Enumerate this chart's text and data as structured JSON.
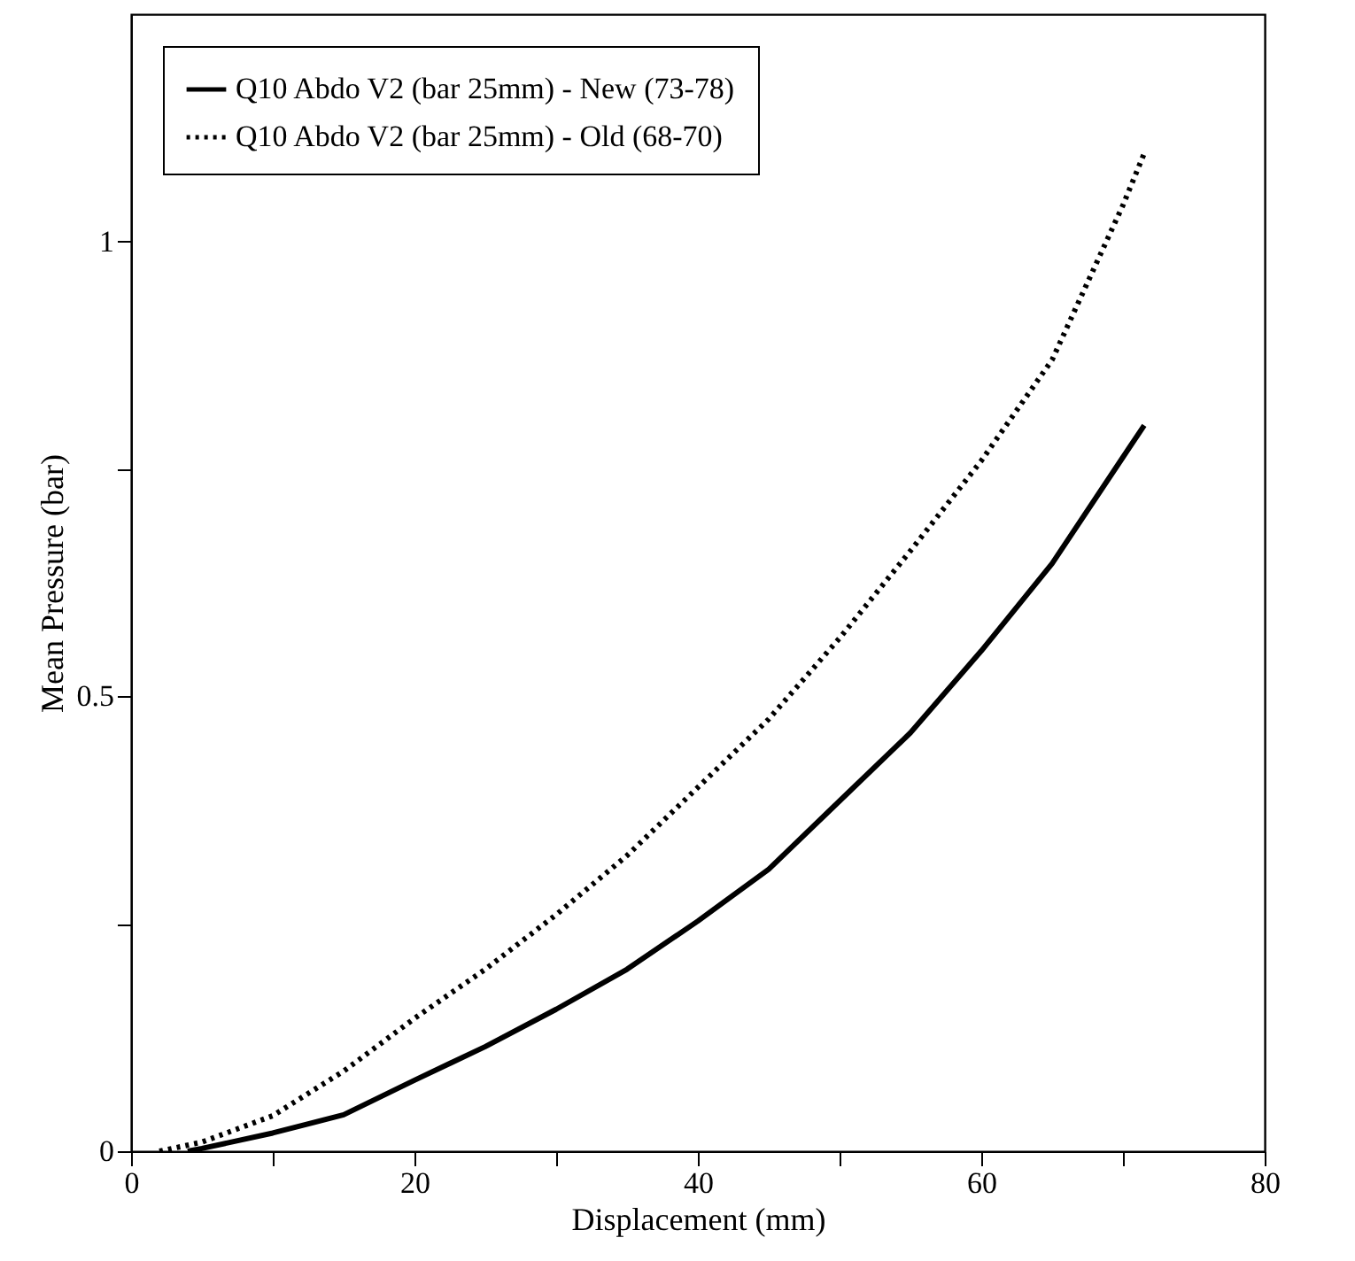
{
  "chart_data": {
    "type": "line",
    "xlabel": "Displacement (mm)",
    "ylabel": "Mean Pressure (bar)",
    "xlim": [
      0,
      80
    ],
    "ylim": [
      0,
      1.25
    ],
    "xticks": [
      0,
      {
        "value": 10,
        "label": null
      },
      20,
      {
        "value": 30,
        "label": null
      },
      40,
      {
        "value": 50,
        "label": null
      },
      60,
      {
        "value": 70,
        "label": null
      },
      80
    ],
    "yticks": [
      0,
      {
        "value": 0.25,
        "label": null
      },
      0.5,
      {
        "value": 0.75,
        "label": null
      },
      1
    ],
    "grid": false,
    "legend": "top left",
    "marker": "none",
    "series": [
      {
        "name": "Q10 Abdo V2 (bar 25mm) - New (73-78)",
        "color": "#000000",
        "line_style": "solid",
        "x": [
          4,
          5,
          10,
          15,
          20,
          25,
          30,
          35,
          40,
          45,
          50,
          55,
          60,
          65,
          70,
          71.5
        ],
        "values": [
          0,
          0.003,
          0.02,
          0.04,
          0.078,
          0.115,
          0.156,
          0.2,
          0.253,
          0.31,
          0.385,
          0.46,
          0.55,
          0.646,
          0.763,
          0.798
        ]
      },
      {
        "name": "Q10 Abdo V2 (bar 25mm) - Old (68-70)",
        "color": "#000000",
        "line_style": "dotted",
        "x": [
          2,
          5,
          10,
          15,
          20,
          25,
          30,
          35,
          40,
          45,
          50,
          55,
          60,
          65,
          70,
          71.5
        ],
        "values": [
          0,
          0.01,
          0.039,
          0.088,
          0.146,
          0.2,
          0.26,
          0.325,
          0.4,
          0.475,
          0.564,
          0.66,
          0.759,
          0.87,
          1.04,
          1.097
        ]
      }
    ]
  }
}
